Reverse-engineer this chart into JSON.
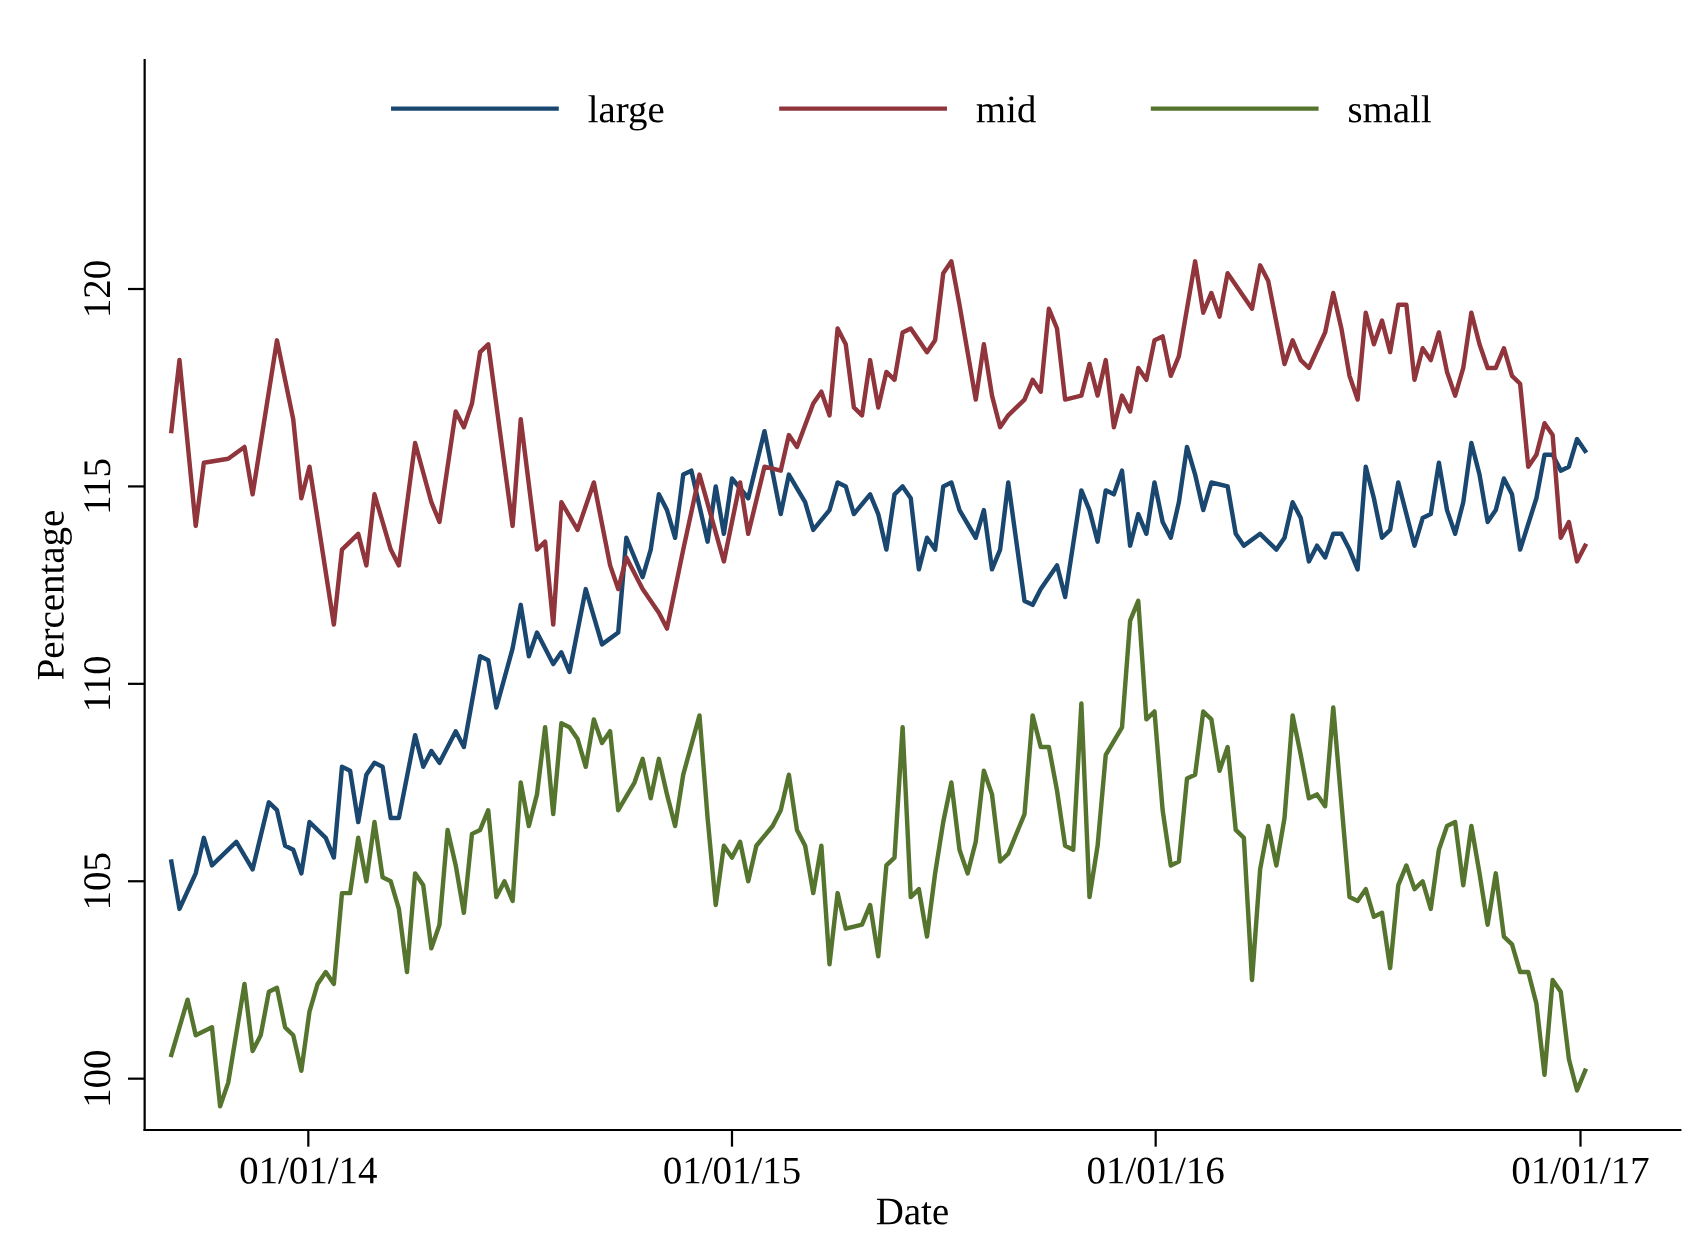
{
  "chart_data": {
    "type": "line",
    "xlabel": "Date",
    "ylabel": "Percentage",
    "legend": "top",
    "grid": false,
    "marker": "none",
    "line_style": "solid",
    "xlim": [
      "2013-08-13",
      "2017-03-28"
    ],
    "xticks": [
      {
        "value": "2014-01-01",
        "label": "01/01/14"
      },
      {
        "value": "2015-01-01",
        "label": "01/01/15"
      },
      {
        "value": "2016-01-01",
        "label": "01/01/16"
      },
      {
        "value": "2017-01-01",
        "label": "01/01/17"
      }
    ],
    "ylim": [
      98.7,
      125.8
    ],
    "yticks": [
      100,
      105,
      110,
      115,
      120
    ],
    "series": [
      {
        "name": "large",
        "color": "#1a476f",
        "x": [
          "2013-09-05",
          "2013-09-12",
          "2013-09-26",
          "2013-10-03",
          "2013-10-10",
          "2013-10-24",
          "2013-10-31",
          "2013-11-14",
          "2013-11-28",
          "2013-12-05",
          "2013-12-12",
          "2013-12-19",
          "2013-12-26",
          "2014-01-02",
          "2014-01-16",
          "2014-01-23",
          "2014-01-30",
          "2014-02-06",
          "2014-02-13",
          "2014-02-20",
          "2014-02-27",
          "2014-03-06",
          "2014-03-13",
          "2014-03-20",
          "2014-04-03",
          "2014-04-10",
          "2014-04-17",
          "2014-04-24",
          "2014-05-08",
          "2014-05-15",
          "2014-05-29",
          "2014-06-05",
          "2014-06-12",
          "2014-06-26",
          "2014-07-03",
          "2014-07-10",
          "2014-07-17",
          "2014-07-31",
          "2014-08-07",
          "2014-08-14",
          "2014-08-28",
          "2014-09-11",
          "2014-09-25",
          "2014-10-02",
          "2014-10-16",
          "2014-10-23",
          "2014-10-30",
          "2014-11-06",
          "2014-11-13",
          "2014-11-20",
          "2014-11-27",
          "2014-12-11",
          "2014-12-18",
          "2014-12-25",
          "2015-01-01",
          "2015-01-15",
          "2015-01-29",
          "2015-02-12",
          "2015-02-19",
          "2015-03-05",
          "2015-03-12",
          "2015-03-26",
          "2015-04-02",
          "2015-04-09",
          "2015-04-16",
          "2015-04-30",
          "2015-05-07",
          "2015-05-14",
          "2015-05-21",
          "2015-05-28",
          "2015-06-04",
          "2015-06-11",
          "2015-06-18",
          "2015-06-25",
          "2015-07-02",
          "2015-07-09",
          "2015-07-16",
          "2015-07-30",
          "2015-08-06",
          "2015-08-13",
          "2015-08-20",
          "2015-08-27",
          "2015-09-03",
          "2015-09-10",
          "2015-09-17",
          "2015-09-24",
          "2015-10-08",
          "2015-10-15",
          "2015-10-29",
          "2015-11-05",
          "2015-11-12",
          "2015-11-19",
          "2015-11-26",
          "2015-12-03",
          "2015-12-10",
          "2015-12-17",
          "2015-12-24",
          "2015-12-31",
          "2016-01-07",
          "2016-01-14",
          "2016-01-21",
          "2016-01-28",
          "2016-02-04",
          "2016-02-11",
          "2016-02-18",
          "2016-03-03",
          "2016-03-10",
          "2016-03-17",
          "2016-03-31",
          "2016-04-14",
          "2016-04-21",
          "2016-04-28",
          "2016-05-05",
          "2016-05-12",
          "2016-05-19",
          "2016-05-26",
          "2016-06-02",
          "2016-06-09",
          "2016-06-16",
          "2016-06-23",
          "2016-06-30",
          "2016-07-07",
          "2016-07-14",
          "2016-07-21",
          "2016-07-28",
          "2016-08-11",
          "2016-08-18",
          "2016-08-25",
          "2016-09-01",
          "2016-09-08",
          "2016-09-15",
          "2016-09-22",
          "2016-09-29",
          "2016-10-06",
          "2016-10-13",
          "2016-10-20",
          "2016-10-27",
          "2016-11-03",
          "2016-11-10",
          "2016-11-24",
          "2016-12-01",
          "2016-12-08",
          "2016-12-15",
          "2016-12-22",
          "2016-12-29",
          "2017-01-05"
        ],
        "values": [
          105.5,
          104.3,
          105.2,
          106.1,
          105.4,
          105.8,
          106.0,
          105.3,
          107.0,
          106.8,
          105.9,
          105.8,
          105.2,
          106.5,
          106.1,
          105.6,
          107.9,
          107.8,
          106.5,
          107.7,
          108.0,
          107.9,
          106.6,
          106.6,
          108.7,
          107.9,
          108.3,
          108.0,
          108.8,
          108.4,
          110.7,
          110.6,
          109.4,
          110.9,
          112.0,
          110.7,
          111.3,
          110.5,
          110.8,
          110.3,
          112.4,
          111.0,
          111.3,
          113.7,
          112.7,
          113.4,
          114.8,
          114.4,
          113.7,
          115.3,
          115.4,
          113.6,
          115.0,
          113.8,
          115.2,
          114.7,
          116.4,
          114.3,
          115.3,
          114.6,
          113.9,
          114.4,
          115.1,
          115.0,
          114.3,
          114.8,
          114.3,
          113.4,
          114.8,
          115.0,
          114.7,
          112.9,
          113.7,
          113.4,
          115.0,
          115.1,
          114.4,
          113.7,
          114.4,
          112.9,
          113.4,
          115.1,
          113.6,
          112.1,
          112.0,
          112.4,
          113.0,
          112.2,
          114.9,
          114.4,
          113.6,
          114.9,
          114.8,
          115.4,
          113.5,
          114.3,
          113.8,
          115.1,
          114.1,
          113.7,
          114.6,
          116.0,
          115.3,
          114.4,
          115.1,
          115.0,
          113.8,
          113.5,
          113.8,
          113.4,
          113.7,
          114.6,
          114.2,
          113.1,
          113.5,
          113.2,
          113.8,
          113.8,
          113.4,
          112.9,
          115.5,
          114.7,
          113.7,
          113.9,
          115.1,
          113.5,
          114.2,
          114.3,
          115.6,
          114.4,
          113.8,
          114.6,
          116.1,
          115.3,
          114.1,
          114.4,
          115.2,
          114.8,
          113.4,
          114.7,
          115.8,
          115.8,
          115.4,
          115.5,
          116.2,
          115.9
        ]
      },
      {
        "name": "mid",
        "color": "#90353b",
        "x": [
          "2013-09-05",
          "2013-09-12",
          "2013-09-26",
          "2013-10-03",
          "2013-10-24",
          "2013-11-07",
          "2013-11-14",
          "2013-12-05",
          "2013-12-19",
          "2013-12-26",
          "2014-01-02",
          "2014-01-23",
          "2014-01-30",
          "2014-02-13",
          "2014-02-20",
          "2014-02-27",
          "2014-03-13",
          "2014-03-20",
          "2014-04-03",
          "2014-04-17",
          "2014-04-24",
          "2014-05-08",
          "2014-05-15",
          "2014-05-22",
          "2014-05-29",
          "2014-06-05",
          "2014-06-26",
          "2014-07-03",
          "2014-07-17",
          "2014-07-24",
          "2014-07-31",
          "2014-08-07",
          "2014-08-21",
          "2014-09-04",
          "2014-09-18",
          "2014-09-25",
          "2014-10-02",
          "2014-10-16",
          "2014-10-30",
          "2014-11-06",
          "2014-11-20",
          "2014-12-04",
          "2014-12-25",
          "2015-01-08",
          "2015-01-15",
          "2015-01-29",
          "2015-02-12",
          "2015-02-19",
          "2015-02-26",
          "2015-03-12",
          "2015-03-19",
          "2015-03-26",
          "2015-04-02",
          "2015-04-09",
          "2015-04-16",
          "2015-04-23",
          "2015-04-30",
          "2015-05-07",
          "2015-05-14",
          "2015-05-21",
          "2015-05-28",
          "2015-06-04",
          "2015-06-18",
          "2015-06-25",
          "2015-07-02",
          "2015-07-09",
          "2015-07-16",
          "2015-07-30",
          "2015-08-06",
          "2015-08-13",
          "2015-08-20",
          "2015-08-27",
          "2015-09-10",
          "2015-09-17",
          "2015-09-24",
          "2015-10-01",
          "2015-10-08",
          "2015-10-15",
          "2015-10-29",
          "2015-11-05",
          "2015-11-12",
          "2015-11-19",
          "2015-11-26",
          "2015-12-03",
          "2015-12-10",
          "2015-12-17",
          "2015-12-24",
          "2015-12-31",
          "2016-01-07",
          "2016-01-14",
          "2016-01-21",
          "2016-02-04",
          "2016-02-11",
          "2016-02-18",
          "2016-02-25",
          "2016-03-03",
          "2016-03-24",
          "2016-03-31",
          "2016-04-07",
          "2016-04-21",
          "2016-04-28",
          "2016-05-05",
          "2016-05-12",
          "2016-05-26",
          "2016-06-02",
          "2016-06-09",
          "2016-06-16",
          "2016-06-23",
          "2016-06-30",
          "2016-07-07",
          "2016-07-14",
          "2016-07-21",
          "2016-07-28",
          "2016-08-04",
          "2016-08-11",
          "2016-08-18",
          "2016-08-25",
          "2016-09-01",
          "2016-09-08",
          "2016-09-15",
          "2016-09-22",
          "2016-09-29",
          "2016-10-06",
          "2016-10-13",
          "2016-10-20",
          "2016-10-27",
          "2016-11-03",
          "2016-11-10",
          "2016-11-17",
          "2016-11-24",
          "2016-12-01",
          "2016-12-08",
          "2016-12-15",
          "2016-12-22",
          "2016-12-29",
          "2017-01-05"
        ],
        "values": [
          116.4,
          118.2,
          114.0,
          115.6,
          115.7,
          116.0,
          114.8,
          118.7,
          116.7,
          114.7,
          115.5,
          111.5,
          113.4,
          113.8,
          113.0,
          114.8,
          113.4,
          113.0,
          116.1,
          114.6,
          114.1,
          116.9,
          116.5,
          117.1,
          118.4,
          118.6,
          114.0,
          116.7,
          113.4,
          113.6,
          111.5,
          114.6,
          113.9,
          115.1,
          113.0,
          112.4,
          113.2,
          112.4,
          111.8,
          111.4,
          113.4,
          115.3,
          113.1,
          115.1,
          113.8,
          115.5,
          115.4,
          116.3,
          116.0,
          117.1,
          117.4,
          116.8,
          119.0,
          118.6,
          117.0,
          116.8,
          118.2,
          117.0,
          117.9,
          117.7,
          118.9,
          119.0,
          118.4,
          118.7,
          120.4,
          120.7,
          119.6,
          117.2,
          118.6,
          117.3,
          116.5,
          116.8,
          117.2,
          117.7,
          117.4,
          119.5,
          119.0,
          117.2,
          117.3,
          118.1,
          117.3,
          118.2,
          116.5,
          117.3,
          116.9,
          118.0,
          117.7,
          118.7,
          118.8,
          117.8,
          118.3,
          120.7,
          119.4,
          119.9,
          119.3,
          120.4,
          119.5,
          120.6,
          120.2,
          118.1,
          118.7,
          118.2,
          118.0,
          118.9,
          119.9,
          119.0,
          117.8,
          117.2,
          119.4,
          118.6,
          119.2,
          118.4,
          119.6,
          119.6,
          117.7,
          118.5,
          118.2,
          118.9,
          117.9,
          117.3,
          118.0,
          119.4,
          118.6,
          118.0,
          118.0,
          118.5,
          117.8,
          117.6,
          115.5,
          115.8,
          116.6,
          116.3,
          113.7,
          114.1,
          113.1,
          113.5
        ]
      },
      {
        "name": "small",
        "color": "#55752f",
        "x": [
          "2013-09-05",
          "2013-09-19",
          "2013-09-26",
          "2013-10-10",
          "2013-10-17",
          "2013-10-24",
          "2013-11-07",
          "2013-11-14",
          "2013-11-21",
          "2013-11-28",
          "2013-12-05",
          "2013-12-12",
          "2013-12-19",
          "2013-12-26",
          "2014-01-02",
          "2014-01-09",
          "2014-01-16",
          "2014-01-23",
          "2014-01-30",
          "2014-02-06",
          "2014-02-13",
          "2014-02-20",
          "2014-02-27",
          "2014-03-06",
          "2014-03-13",
          "2014-03-20",
          "2014-03-27",
          "2014-04-03",
          "2014-04-10",
          "2014-04-17",
          "2014-04-24",
          "2014-05-01",
          "2014-05-08",
          "2014-05-15",
          "2014-05-22",
          "2014-05-29",
          "2014-06-05",
          "2014-06-12",
          "2014-06-19",
          "2014-06-26",
          "2014-07-03",
          "2014-07-10",
          "2014-07-17",
          "2014-07-24",
          "2014-07-31",
          "2014-08-07",
          "2014-08-14",
          "2014-08-21",
          "2014-08-28",
          "2014-09-04",
          "2014-09-11",
          "2014-09-18",
          "2014-09-25",
          "2014-10-09",
          "2014-10-16",
          "2014-10-23",
          "2014-10-30",
          "2014-11-06",
          "2014-11-13",
          "2014-11-20",
          "2014-12-04",
          "2014-12-11",
          "2014-12-18",
          "2014-12-25",
          "2015-01-01",
          "2015-01-08",
          "2015-01-15",
          "2015-01-22",
          "2015-02-05",
          "2015-02-12",
          "2015-02-19",
          "2015-02-26",
          "2015-03-05",
          "2015-03-12",
          "2015-03-19",
          "2015-03-26",
          "2015-04-02",
          "2015-04-09",
          "2015-04-23",
          "2015-04-30",
          "2015-05-07",
          "2015-05-14",
          "2015-05-21",
          "2015-05-28",
          "2015-06-04",
          "2015-06-11",
          "2015-06-18",
          "2015-06-25",
          "2015-07-02",
          "2015-07-09",
          "2015-07-16",
          "2015-07-23",
          "2015-07-30",
          "2015-08-06",
          "2015-08-13",
          "2015-08-20",
          "2015-08-27",
          "2015-09-10",
          "2015-09-17",
          "2015-09-24",
          "2015-10-01",
          "2015-10-08",
          "2015-10-15",
          "2015-10-22",
          "2015-10-29",
          "2015-11-05",
          "2015-11-12",
          "2015-11-19",
          "2015-12-03",
          "2015-12-10",
          "2015-12-17",
          "2015-12-24",
          "2015-12-31",
          "2016-01-07",
          "2016-01-14",
          "2016-01-21",
          "2016-01-28",
          "2016-02-04",
          "2016-02-11",
          "2016-02-18",
          "2016-02-25",
          "2016-03-03",
          "2016-03-10",
          "2016-03-17",
          "2016-03-24",
          "2016-03-31",
          "2016-04-07",
          "2016-04-14",
          "2016-04-21",
          "2016-04-28",
          "2016-05-05",
          "2016-05-12",
          "2016-05-19",
          "2016-05-26",
          "2016-06-02",
          "2016-06-09",
          "2016-06-16",
          "2016-06-23",
          "2016-06-30",
          "2016-07-07",
          "2016-07-14",
          "2016-07-21",
          "2016-07-28",
          "2016-08-04",
          "2016-08-11",
          "2016-08-18",
          "2016-08-25",
          "2016-09-01",
          "2016-09-08",
          "2016-09-15",
          "2016-09-22",
          "2016-09-29",
          "2016-10-06",
          "2016-10-13",
          "2016-10-20",
          "2016-10-27",
          "2016-11-03",
          "2016-11-10",
          "2016-11-17",
          "2016-11-24",
          "2016-12-01",
          "2016-12-08",
          "2016-12-15",
          "2016-12-22",
          "2016-12-29",
          "2017-01-05"
        ],
        "values": [
          100.6,
          102.0,
          101.1,
          101.3,
          99.3,
          99.9,
          102.4,
          100.7,
          101.1,
          102.2,
          102.3,
          101.3,
          101.1,
          100.2,
          101.7,
          102.4,
          102.7,
          102.4,
          104.7,
          104.7,
          106.1,
          105.0,
          106.5,
          105.1,
          105.0,
          104.3,
          102.7,
          105.2,
          104.9,
          103.3,
          103.9,
          106.3,
          105.4,
          104.2,
          106.2,
          106.3,
          106.8,
          104.6,
          105.0,
          104.5,
          107.5,
          106.4,
          107.2,
          108.9,
          106.7,
          109.0,
          108.9,
          108.6,
          107.9,
          109.1,
          108.5,
          108.8,
          106.8,
          107.5,
          108.1,
          107.1,
          108.1,
          107.2,
          106.4,
          107.7,
          109.2,
          106.6,
          104.4,
          105.9,
          105.6,
          106.0,
          105.0,
          105.9,
          106.4,
          106.8,
          107.7,
          106.3,
          105.9,
          104.7,
          105.9,
          102.9,
          104.7,
          103.8,
          103.9,
          104.4,
          103.1,
          105.4,
          105.6,
          108.9,
          104.6,
          104.8,
          103.6,
          105.2,
          106.5,
          107.5,
          105.8,
          105.2,
          106.0,
          107.8,
          107.2,
          105.5,
          105.7,
          106.7,
          109.2,
          108.4,
          108.4,
          107.3,
          105.9,
          105.8,
          109.5,
          104.6,
          105.9,
          108.2,
          108.9,
          111.6,
          112.1,
          109.1,
          109.3,
          106.8,
          105.4,
          105.5,
          107.6,
          107.7,
          109.3,
          109.1,
          107.8,
          108.4,
          106.3,
          106.1,
          102.5,
          105.3,
          106.4,
          105.4,
          106.6,
          109.2,
          108.2,
          107.1,
          107.2,
          106.9,
          109.4,
          107.0,
          104.6,
          104.5,
          104.8,
          104.1,
          104.2,
          102.8,
          104.9,
          105.4,
          104.8,
          105.0,
          104.3,
          105.8,
          106.4,
          106.5,
          104.9,
          106.4,
          105.2,
          103.9,
          105.2,
          103.6,
          103.4,
          102.7,
          102.7,
          101.9,
          100.1,
          102.5,
          102.2,
          100.5,
          99.7,
          100.2
        ]
      }
    ]
  }
}
